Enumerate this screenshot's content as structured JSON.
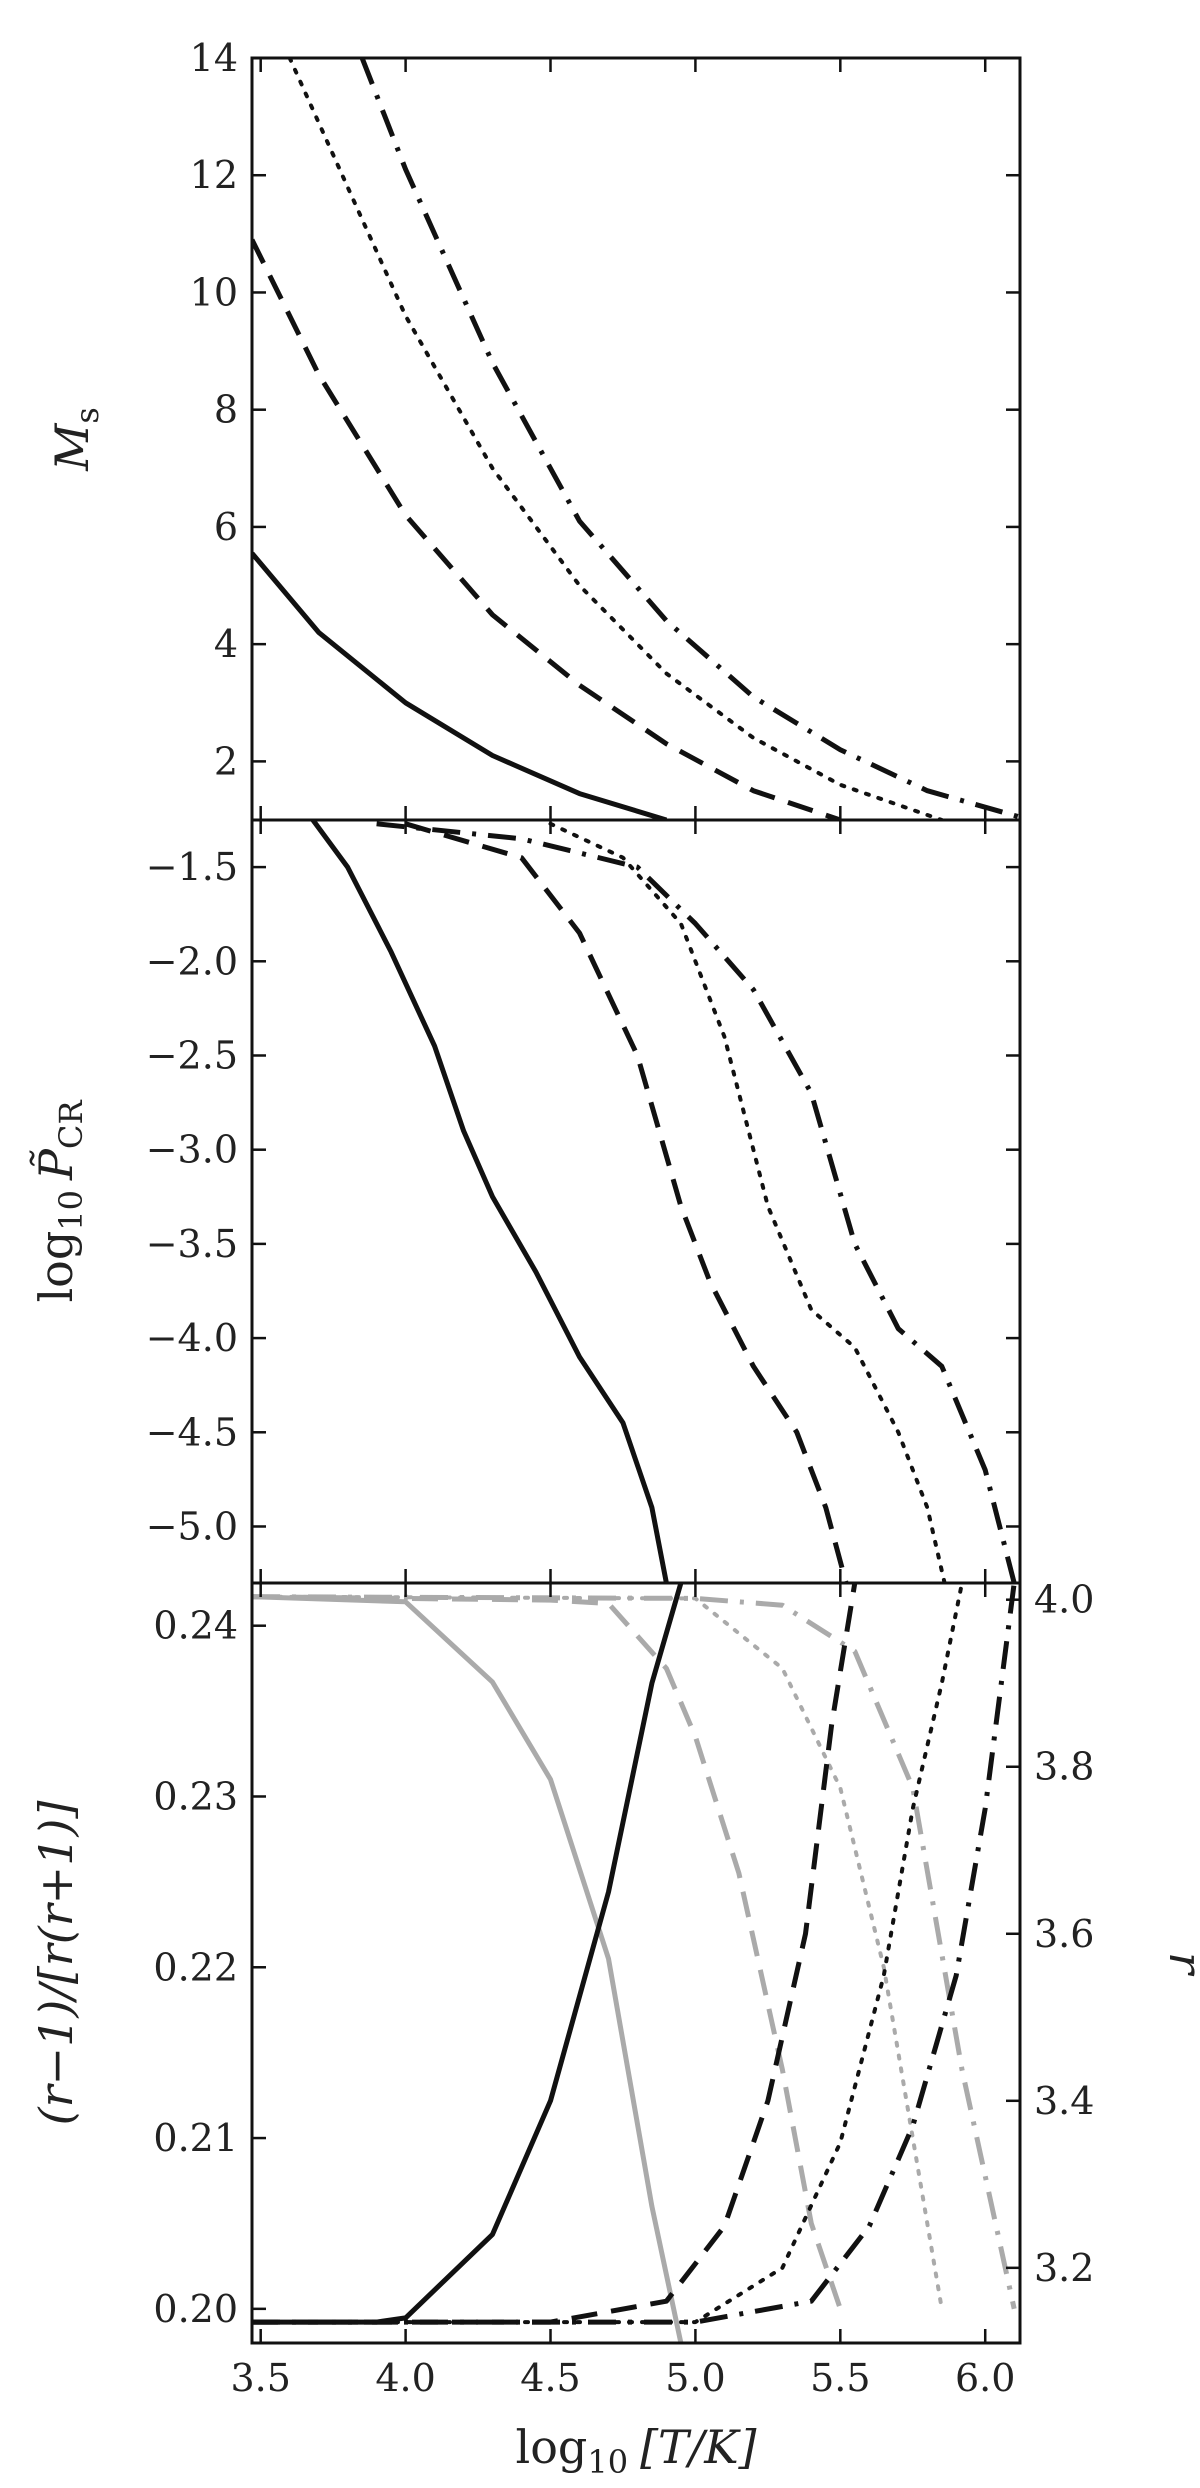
{
  "chart_data": [
    {
      "type": "line",
      "ylabel": "M_s",
      "ylabel_parts": {
        "main": "M",
        "sub": "s"
      },
      "xlim": [
        3.47,
        6.12
      ],
      "ylim": [
        1.0,
        14.0
      ],
      "yticks": [
        2,
        4,
        6,
        8,
        10,
        12,
        14
      ],
      "ytick_labels": [
        "2",
        "4",
        "6",
        "8",
        "10",
        "12",
        "14"
      ],
      "series": [
        {
          "style": "solid",
          "color": "#111111",
          "x": [
            3.47,
            3.7,
            4.0,
            4.3,
            4.6,
            4.9
          ],
          "y": [
            5.55,
            4.2,
            3.0,
            2.1,
            1.45,
            1.0
          ]
        },
        {
          "style": "dashed",
          "color": "#111111",
          "x": [
            3.47,
            3.7,
            4.0,
            4.3,
            4.6,
            4.9,
            5.2,
            5.5
          ],
          "y": [
            10.9,
            8.6,
            6.2,
            4.5,
            3.3,
            2.3,
            1.5,
            1.0
          ]
        },
        {
          "style": "dotted",
          "color": "#111111",
          "x": [
            3.6,
            3.8,
            4.0,
            4.3,
            4.6,
            4.9,
            5.2,
            5.5,
            5.85
          ],
          "y": [
            14.0,
            11.8,
            9.6,
            7.0,
            5.0,
            3.5,
            2.4,
            1.6,
            1.0
          ]
        },
        {
          "style": "dashdot",
          "color": "#111111",
          "x": [
            3.85,
            4.0,
            4.3,
            4.6,
            4.9,
            5.2,
            5.5,
            5.8,
            6.12
          ],
          "y": [
            14.0,
            12.1,
            8.8,
            6.1,
            4.4,
            3.1,
            2.2,
            1.5,
            1.05
          ]
        }
      ]
    },
    {
      "type": "line",
      "ylabel": "log10 P̃_CR",
      "ylabel_parts": {
        "prefix": "log",
        "prefix_sub": "10",
        "main": "P̃",
        "sub": "CR"
      },
      "xlim": [
        3.47,
        6.12
      ],
      "ylim": [
        -5.3,
        -1.25
      ],
      "yticks": [
        -1.5,
        -2.0,
        -2.5,
        -3.0,
        -3.5,
        -4.0,
        -4.5,
        -5.0
      ],
      "ytick_labels": [
        "−1.5",
        "−2.0",
        "−2.5",
        "−3.0",
        "−3.5",
        "−4.0",
        "−4.5",
        "−5.0"
      ],
      "series": [
        {
          "style": "solid",
          "color": "#111111",
          "x": [
            3.68,
            3.8,
            3.95,
            4.1,
            4.2,
            4.3,
            4.45,
            4.6,
            4.75,
            4.85,
            4.9
          ],
          "y": [
            -1.25,
            -1.5,
            -1.95,
            -2.45,
            -2.9,
            -3.25,
            -3.65,
            -4.1,
            -4.45,
            -4.9,
            -5.3
          ]
        },
        {
          "style": "dashed",
          "color": "#111111",
          "x": [
            4.0,
            4.4,
            4.6,
            4.8,
            4.95,
            5.05,
            5.2,
            5.35,
            5.45,
            5.52
          ],
          "y": [
            -1.27,
            -1.45,
            -1.85,
            -2.5,
            -3.3,
            -3.7,
            -4.15,
            -4.5,
            -4.9,
            -5.3
          ]
        },
        {
          "style": "dotted",
          "color": "#111111",
          "x": [
            4.5,
            4.75,
            4.95,
            5.1,
            5.25,
            5.4,
            5.55,
            5.7,
            5.8,
            5.86
          ],
          "y": [
            -1.27,
            -1.45,
            -1.8,
            -2.4,
            -3.3,
            -3.85,
            -4.05,
            -4.5,
            -4.9,
            -5.3
          ]
        },
        {
          "style": "dashdot",
          "color": "#111111",
          "x": [
            3.9,
            4.4,
            4.8,
            5.0,
            5.2,
            5.4,
            5.55,
            5.7,
            5.85,
            6.0,
            6.1
          ],
          "y": [
            -1.27,
            -1.35,
            -1.5,
            -1.8,
            -2.15,
            -2.7,
            -3.5,
            -3.95,
            -4.15,
            -4.7,
            -5.3
          ]
        }
      ]
    },
    {
      "type": "line",
      "ylabel": "(r−1)/[r(r+1)]",
      "y2label": "r",
      "xlabel": "log10 [T/K]",
      "xlabel_parts": {
        "prefix": "log",
        "prefix_sub": "10",
        "main": "[T/K]"
      },
      "xlim": [
        3.47,
        6.12
      ],
      "xticks": [
        3.5,
        4.0,
        4.5,
        5.0,
        5.5,
        6.0
      ],
      "xtick_labels": [
        "3.5",
        "4.0",
        "4.5",
        "5.0",
        "5.5",
        "6.0"
      ],
      "ylim": [
        0.198,
        0.2425
      ],
      "yticks": [
        0.2,
        0.21,
        0.22,
        0.23,
        0.24
      ],
      "ytick_labels": [
        "0.20",
        "0.21",
        "0.22",
        "0.23",
        "0.24"
      ],
      "y2lim": [
        3.11,
        4.02
      ],
      "y2ticks": [
        3.2,
        3.4,
        3.6,
        3.8,
        4.0
      ],
      "y2tick_labels": [
        "3.2",
        "3.4",
        "3.6",
        "3.8",
        "4.0"
      ],
      "series": [
        {
          "style": "solid",
          "color": "#aaaaaa",
          "axis": "left",
          "x": [
            3.47,
            4.0,
            4.3,
            4.5,
            4.7,
            4.85,
            4.95
          ],
          "y": [
            0.2417,
            0.2414,
            0.2367,
            0.231,
            0.2205,
            0.206,
            0.198
          ]
        },
        {
          "style": "dashed",
          "color": "#aaaaaa",
          "axis": "left",
          "x": [
            3.47,
            4.5,
            4.7,
            4.9,
            5.0,
            5.15,
            5.3,
            5.4,
            5.5
          ],
          "y": [
            0.2417,
            0.2415,
            0.2413,
            0.2375,
            0.2335,
            0.2255,
            0.214,
            0.205,
            0.2
          ]
        },
        {
          "style": "dotted",
          "color": "#aaaaaa",
          "axis": "left",
          "x": [
            3.47,
            5.0,
            5.3,
            5.5,
            5.65,
            5.75,
            5.85
          ],
          "y": [
            0.2417,
            0.2416,
            0.2375,
            0.2305,
            0.22,
            0.21,
            0.2
          ]
        },
        {
          "style": "dashdot",
          "color": "#aaaaaa",
          "axis": "left",
          "x": [
            3.47,
            5.0,
            5.3,
            5.55,
            5.75,
            5.92,
            6.1
          ],
          "y": [
            0.2417,
            0.2416,
            0.2412,
            0.2385,
            0.2305,
            0.214,
            0.2
          ]
        },
        {
          "style": "solid",
          "color": "#111111",
          "axis": "right",
          "x": [
            3.47,
            3.9,
            4.0,
            4.3,
            4.5,
            4.7,
            4.85,
            4.95
          ],
          "y": [
            3.135,
            3.135,
            3.14,
            3.24,
            3.4,
            3.65,
            3.9,
            4.02
          ]
        },
        {
          "style": "dashed",
          "color": "#111111",
          "axis": "right",
          "x": [
            3.47,
            4.5,
            4.9,
            5.1,
            5.25,
            5.38,
            5.47,
            5.55
          ],
          "y": [
            3.135,
            3.135,
            3.16,
            3.25,
            3.4,
            3.6,
            3.85,
            4.02
          ]
        },
        {
          "style": "dotted",
          "color": "#111111",
          "axis": "right",
          "x": [
            3.47,
            5.0,
            5.3,
            5.5,
            5.65,
            5.75,
            5.85,
            5.92
          ],
          "y": [
            3.135,
            3.135,
            3.2,
            3.35,
            3.55,
            3.75,
            3.9,
            4.02
          ]
        },
        {
          "style": "dashdot",
          "color": "#111111",
          "axis": "right",
          "x": [
            3.47,
            5.0,
            5.4,
            5.6,
            5.75,
            5.9,
            6.0,
            6.1
          ],
          "y": [
            3.135,
            3.135,
            3.16,
            3.25,
            3.37,
            3.55,
            3.75,
            4.02
          ]
        }
      ]
    }
  ]
}
